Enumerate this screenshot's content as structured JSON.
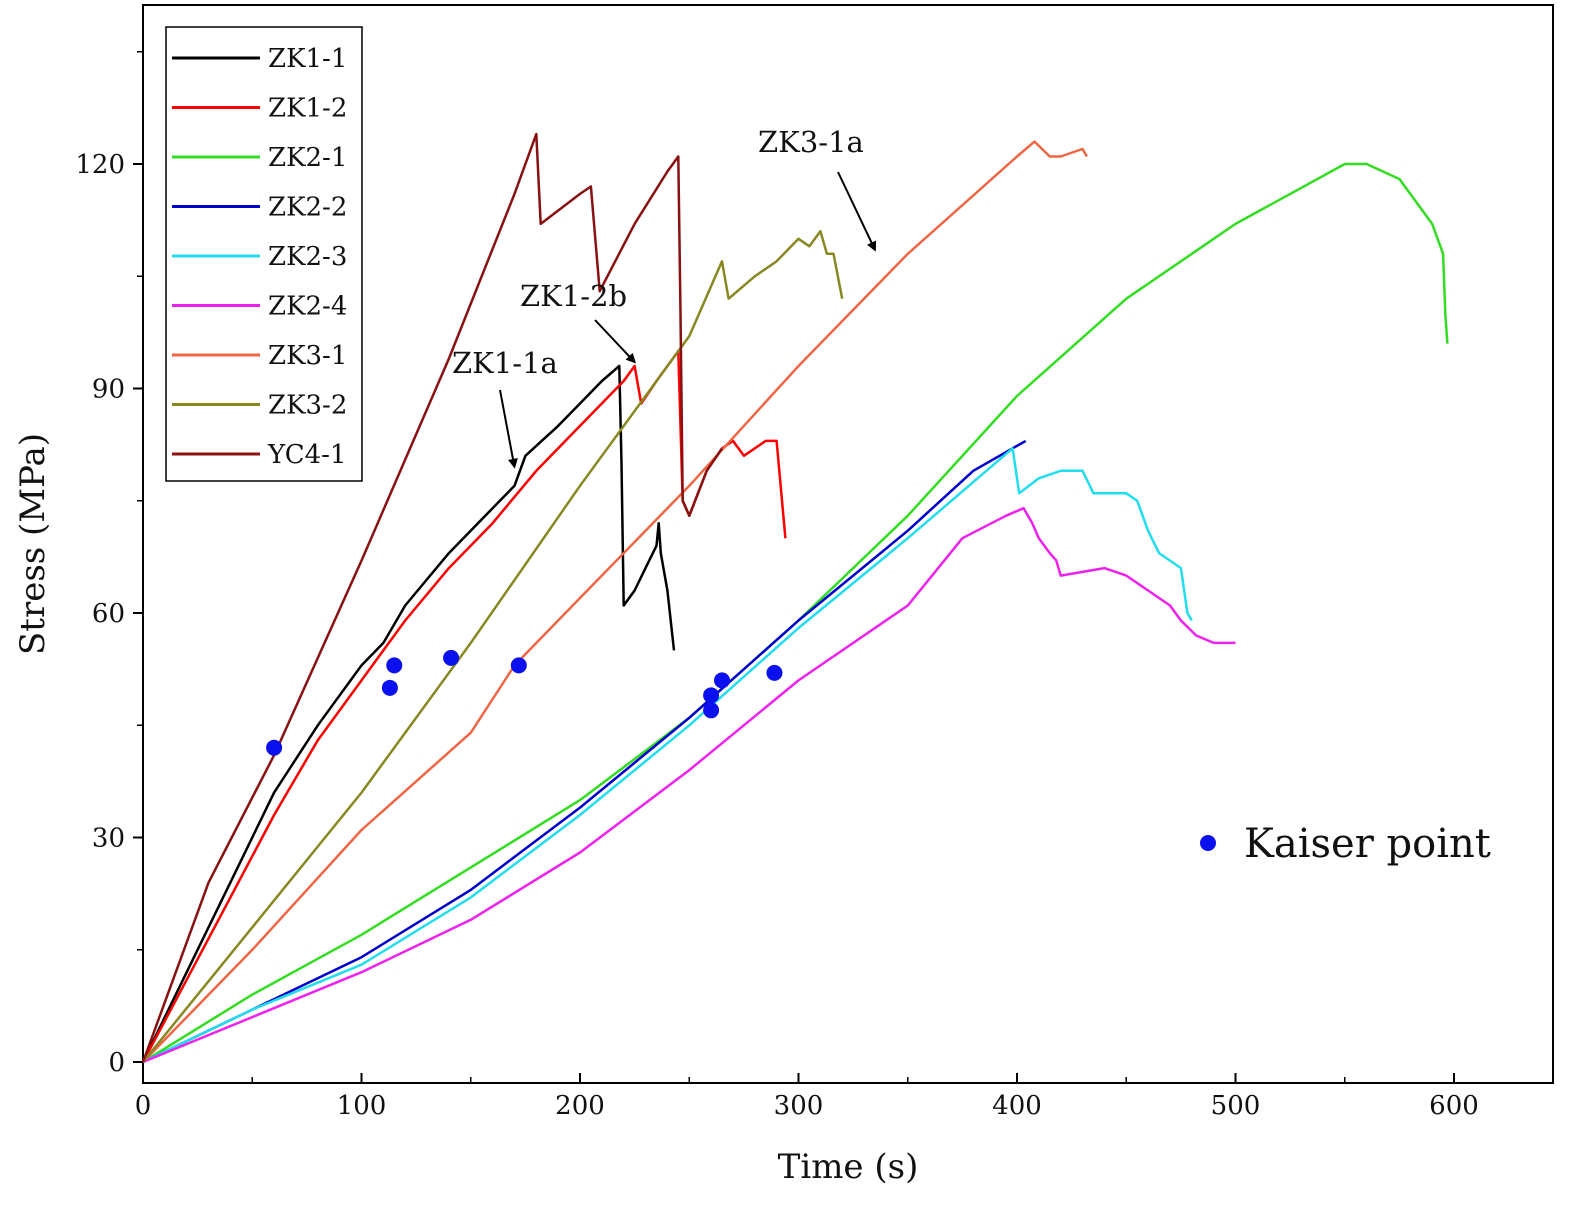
{
  "chart_data": {
    "type": "line",
    "title": "",
    "xlabel": "Time (s)",
    "ylabel": "Stress (MPa)",
    "xlim": [
      0,
      650
    ],
    "ylim": [
      0,
      138
    ],
    "xticks": [
      0,
      100,
      200,
      300,
      400,
      500,
      600
    ],
    "yticks": [
      0,
      30,
      60,
      90,
      120
    ],
    "x_tick_labels": [
      "0",
      "100",
      "200",
      "300",
      "400",
      "500",
      "600"
    ],
    "y_tick_labels": [
      "0",
      "30",
      "60",
      "90",
      "120"
    ],
    "grid": false,
    "legend_position": "top-left",
    "series": [
      {
        "name": "ZK1-1",
        "color": "#000000",
        "points": [
          [
            0,
            0
          ],
          [
            20,
            12
          ],
          [
            40,
            24
          ],
          [
            60,
            36
          ],
          [
            80,
            45
          ],
          [
            100,
            53
          ],
          [
            110,
            56
          ],
          [
            120,
            61
          ],
          [
            140,
            68
          ],
          [
            160,
            74
          ],
          [
            170,
            77
          ],
          [
            175,
            81
          ],
          [
            190,
            85
          ],
          [
            200,
            88
          ],
          [
            210,
            91
          ],
          [
            218,
            93
          ],
          [
            219,
            80
          ],
          [
            220,
            61
          ],
          [
            225,
            63
          ],
          [
            230,
            66
          ],
          [
            235,
            69
          ],
          [
            236,
            72
          ],
          [
            237,
            68
          ],
          [
            240,
            63
          ],
          [
            243,
            55
          ]
        ]
      },
      {
        "name": "ZK1-2",
        "color": "#ff0000",
        "points": [
          [
            0,
            0
          ],
          [
            20,
            11
          ],
          [
            40,
            22
          ],
          [
            60,
            33
          ],
          [
            80,
            43
          ],
          [
            100,
            51
          ],
          [
            120,
            59
          ],
          [
            140,
            66
          ],
          [
            160,
            72
          ],
          [
            180,
            79
          ],
          [
            200,
            85
          ],
          [
            220,
            91
          ],
          [
            225,
            93
          ],
          [
            228,
            88
          ],
          [
            235,
            91
          ],
          [
            245,
            95
          ],
          [
            246,
            85
          ],
          [
            247,
            75
          ],
          [
            250,
            73
          ],
          [
            258,
            79
          ],
          [
            265,
            82
          ],
          [
            270,
            83
          ],
          [
            275,
            81
          ],
          [
            285,
            83
          ],
          [
            290,
            83
          ],
          [
            294,
            70
          ]
        ]
      },
      {
        "name": "ZK2-1",
        "color": "#33dd22",
        "points": [
          [
            0,
            0
          ],
          [
            50,
            9
          ],
          [
            100,
            17
          ],
          [
            150,
            26
          ],
          [
            200,
            35
          ],
          [
            250,
            46
          ],
          [
            300,
            59
          ],
          [
            350,
            73
          ],
          [
            400,
            89
          ],
          [
            450,
            102
          ],
          [
            500,
            112
          ],
          [
            550,
            120
          ],
          [
            560,
            120
          ],
          [
            575,
            118
          ],
          [
            590,
            112
          ],
          [
            595,
            108
          ],
          [
            596,
            100
          ],
          [
            597,
            96
          ]
        ]
      },
      {
        "name": "ZK2-2",
        "color": "#0000cc",
        "points": [
          [
            0,
            0
          ],
          [
            50,
            7
          ],
          [
            100,
            14
          ],
          [
            150,
            23
          ],
          [
            200,
            34
          ],
          [
            250,
            46
          ],
          [
            300,
            59
          ],
          [
            350,
            71
          ],
          [
            380,
            79
          ],
          [
            404,
            83
          ]
        ]
      },
      {
        "name": "ZK2-3",
        "color": "#22ddee",
        "points": [
          [
            0,
            0
          ],
          [
            50,
            7
          ],
          [
            100,
            13
          ],
          [
            150,
            22
          ],
          [
            200,
            33
          ],
          [
            250,
            45
          ],
          [
            300,
            58
          ],
          [
            350,
            70
          ],
          [
            390,
            80
          ],
          [
            398,
            82
          ],
          [
            401,
            76
          ],
          [
            410,
            78
          ],
          [
            420,
            79
          ],
          [
            430,
            79
          ],
          [
            435,
            76
          ],
          [
            450,
            76
          ],
          [
            455,
            75
          ],
          [
            460,
            71
          ],
          [
            465,
            68
          ],
          [
            470,
            67
          ],
          [
            475,
            66
          ],
          [
            478,
            60
          ],
          [
            480,
            59
          ]
        ]
      },
      {
        "name": "ZK2-4",
        "color": "#ee22ee",
        "points": [
          [
            0,
            0
          ],
          [
            50,
            6
          ],
          [
            100,
            12
          ],
          [
            150,
            19
          ],
          [
            200,
            28
          ],
          [
            250,
            39
          ],
          [
            300,
            51
          ],
          [
            350,
            61
          ],
          [
            375,
            70
          ],
          [
            395,
            73
          ],
          [
            403,
            74
          ],
          [
            407,
            72
          ],
          [
            410,
            70
          ],
          [
            415,
            68
          ],
          [
            418,
            67
          ],
          [
            420,
            65
          ],
          [
            440,
            66
          ],
          [
            450,
            65
          ],
          [
            460,
            63
          ],
          [
            470,
            61
          ],
          [
            475,
            59
          ],
          [
            482,
            57
          ],
          [
            490,
            56
          ],
          [
            500,
            56
          ]
        ]
      },
      {
        "name": "ZK3-1",
        "color": "#ee6644",
        "points": [
          [
            0,
            0
          ],
          [
            50,
            15
          ],
          [
            100,
            31
          ],
          [
            150,
            44
          ],
          [
            170,
            53
          ],
          [
            200,
            62
          ],
          [
            250,
            77
          ],
          [
            300,
            93
          ],
          [
            350,
            108
          ],
          [
            400,
            121
          ],
          [
            408,
            123
          ],
          [
            415,
            121
          ],
          [
            420,
            121
          ],
          [
            430,
            122
          ],
          [
            432,
            121
          ]
        ]
      },
      {
        "name": "ZK3-2",
        "color": "#888822",
        "points": [
          [
            0,
            0
          ],
          [
            50,
            18
          ],
          [
            100,
            36
          ],
          [
            150,
            56
          ],
          [
            200,
            77
          ],
          [
            250,
            97
          ],
          [
            265,
            107
          ],
          [
            268,
            102
          ],
          [
            280,
            105
          ],
          [
            290,
            107
          ],
          [
            300,
            110
          ],
          [
            305,
            109
          ],
          [
            310,
            111
          ],
          [
            313,
            108
          ],
          [
            316,
            108
          ],
          [
            320,
            102
          ]
        ]
      },
      {
        "name": "YC4-1",
        "color": "#881111",
        "points": [
          [
            0,
            0
          ],
          [
            30,
            24
          ],
          [
            60,
            41
          ],
          [
            100,
            67
          ],
          [
            140,
            94
          ],
          [
            170,
            116
          ],
          [
            175,
            120
          ],
          [
            180,
            124
          ],
          [
            182,
            112
          ],
          [
            200,
            116
          ],
          [
            205,
            117
          ],
          [
            209,
            103
          ],
          [
            225,
            112
          ],
          [
            240,
            119
          ],
          [
            245,
            121
          ],
          [
            246,
            100
          ],
          [
            247,
            75
          ],
          [
            250,
            73
          ],
          [
            258,
            79
          ],
          [
            265,
            82
          ]
        ]
      }
    ],
    "kaiser_points": {
      "label": "Kaiser point",
      "color": "#0a10ee",
      "points": [
        [
          60,
          42
        ],
        [
          113,
          50
        ],
        [
          115,
          53
        ],
        [
          141,
          54
        ],
        [
          172,
          53
        ],
        [
          260,
          47
        ],
        [
          260,
          49
        ],
        [
          265,
          51
        ],
        [
          289,
          52
        ]
      ]
    },
    "annotations": [
      {
        "text": "ZK1-1a",
        "point_at": [
          170,
          79
        ]
      },
      {
        "text": "ZK1-2b",
        "point_at": [
          225,
          93
        ]
      },
      {
        "text": "ZK3-1a",
        "point_at": [
          335,
          108
        ]
      }
    ]
  }
}
